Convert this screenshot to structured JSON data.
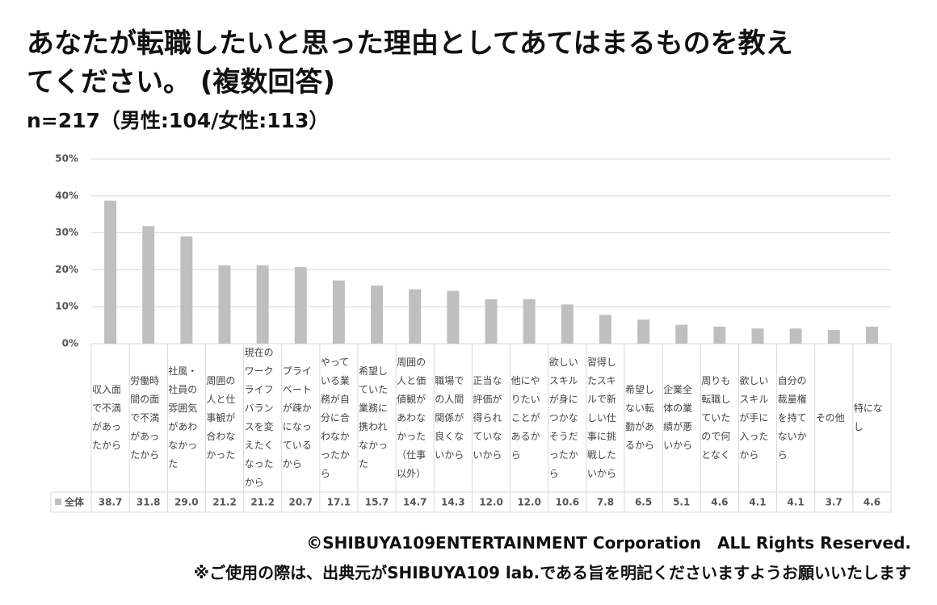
{
  "chart_data": {
    "type": "bar",
    "title": "あなたが転職したいと思った理由としてあてはまるものを教えてください。 (複数回答)",
    "subtitle": "n=217（男性:104/女性:113）",
    "categories": [
      "収入面で不満があったから",
      "労働時間の面で不満があったから",
      "社風・社員の雰囲気があわなかった",
      "周囲の人と仕事観が合わなかった",
      "現在のワークライフバランスを変えたくなったから",
      "プライベートが疎かになっているから",
      "やっている業務が自分に合わなかったから",
      "希望していた業務に携われなかった",
      "周囲の人と価値観があわなかった（仕事以外）",
      "職場での人間関係が良くないから",
      "正当な評価が得られていないから",
      "他にやりたいことがあるから",
      "欲しいスキルが身につかなそうだったから",
      "習得したスキルで新しい仕事に挑戦したいから",
      "希望しない転勤があるから",
      "企業全体の業績が悪いから",
      "周りも転職していたので何となく",
      "欲しいスキルが手に入ったから",
      "自分の裁量権を持てないから",
      "その他",
      "特になし"
    ],
    "series": [
      {
        "name": "全体",
        "color": "#bfbfbf",
        "values": [
          38.7,
          31.8,
          29.0,
          21.2,
          21.2,
          20.7,
          17.1,
          15.7,
          14.7,
          14.3,
          12.0,
          12.0,
          10.6,
          7.8,
          6.5,
          5.1,
          4.6,
          4.1,
          4.1,
          3.7,
          4.6
        ],
        "value_labels": [
          "38.7",
          "31.8",
          "29.0",
          "21.2",
          "21.2",
          "20.7",
          "17.1",
          "15.7",
          "14.7",
          "14.3",
          "12.0",
          "12.0",
          "10.6",
          "7.8",
          "6.5",
          "5.1",
          "4.6",
          "4.1",
          "4.1",
          "3.7",
          "4.6"
        ]
      }
    ],
    "ylim": [
      0,
      50
    ],
    "yticks": [
      {
        "value": 0,
        "label": "0%"
      },
      {
        "value": 10,
        "label": "10%"
      },
      {
        "value": 20,
        "label": "20%"
      },
      {
        "value": 30,
        "label": "30%"
      },
      {
        "value": 40,
        "label": "40%"
      },
      {
        "value": 50,
        "label": "50%"
      }
    ],
    "grid": true
  },
  "footer": {
    "copyright": "©SHIBUYA109ENTERTAINMENT Corporation　ALL Rights Reserved.",
    "note": "※ご使用の際は、出典元がSHIBUYA109 lab.である旨を明記くださいますようお願いいたします"
  }
}
